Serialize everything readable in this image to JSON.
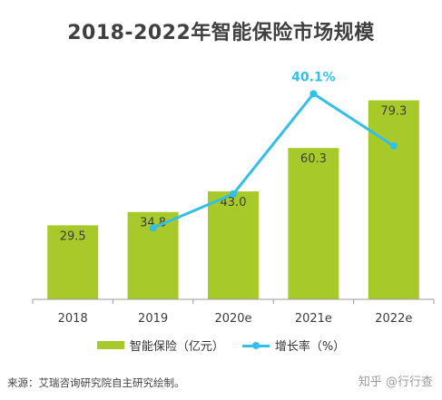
{
  "colors": {
    "bar": "#a8c92a",
    "line": "#33bfe6",
    "axis": "#9b9b9b",
    "label": "#3c3c3c"
  },
  "chart_data": {
    "type": "bar",
    "title": "2018-2022年智能保险市场规模",
    "categories": [
      "2018",
      "2019",
      "2020e",
      "2021e",
      "2022e"
    ],
    "series": [
      {
        "name": "智能保险（亿元）",
        "type": "bar",
        "values": [
          29.5,
          34.8,
          43.0,
          60.3,
          79.3
        ],
        "labels": [
          "29.5",
          "34.8",
          "43.0",
          "60.3",
          "79.3"
        ]
      },
      {
        "name": "增长率（%）",
        "type": "line",
        "values": [
          null,
          18.0,
          23.6,
          40.1,
          31.5
        ],
        "annotations": [
          {
            "category": "2021e",
            "label": "40.1%"
          }
        ]
      }
    ],
    "ylim": [
      0,
      90
    ],
    "y2lim": [
      0,
      50
    ],
    "legend": "bottom",
    "grid": false
  },
  "footer": {
    "source": "来源：艾瑞咨询研究院自主研究绘制。",
    "watermark": "知乎 @行行查"
  }
}
